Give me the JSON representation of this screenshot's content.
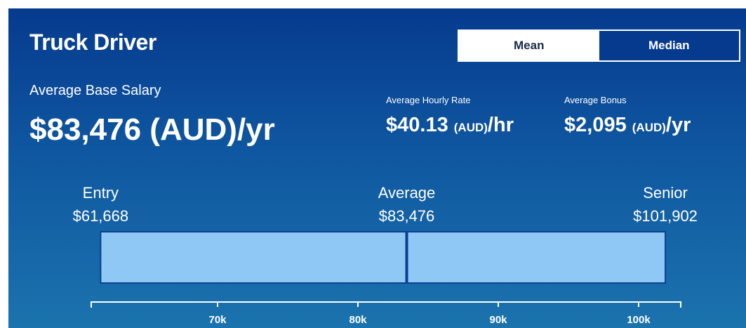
{
  "header": {
    "title": "Truck Driver"
  },
  "toggle": {
    "options": [
      "Mean",
      "Median"
    ],
    "selected": 1
  },
  "base": {
    "label": "Average Base Salary",
    "amount": "$83,476",
    "currency": "(AUD)",
    "unit": "/yr"
  },
  "hourly": {
    "label": "Average Hourly Rate",
    "amount": "$40.13",
    "currency": "(AUD)",
    "unit": "/hr"
  },
  "bonus": {
    "label": "Average Bonus",
    "amount": "$2,095",
    "currency": "(AUD)",
    "unit": "/yr"
  },
  "range": {
    "levels": [
      {
        "label": "Entry",
        "value": 61668,
        "value_label": "$61,668"
      },
      {
        "label": "Average",
        "value": 83476,
        "value_label": "$83,476"
      },
      {
        "label": "Senior",
        "value": 101902,
        "value_label": "$101,902"
      }
    ],
    "xlim": [
      61000,
      103000
    ],
    "xticks": [
      {
        "value": 70000,
        "label": "70k"
      },
      {
        "value": 80000,
        "label": "80k"
      },
      {
        "value": 90000,
        "label": "90k"
      },
      {
        "value": 100000,
        "label": "100k"
      }
    ],
    "bar_color": "#90c8f5",
    "line_color": "#0b3f91"
  }
}
